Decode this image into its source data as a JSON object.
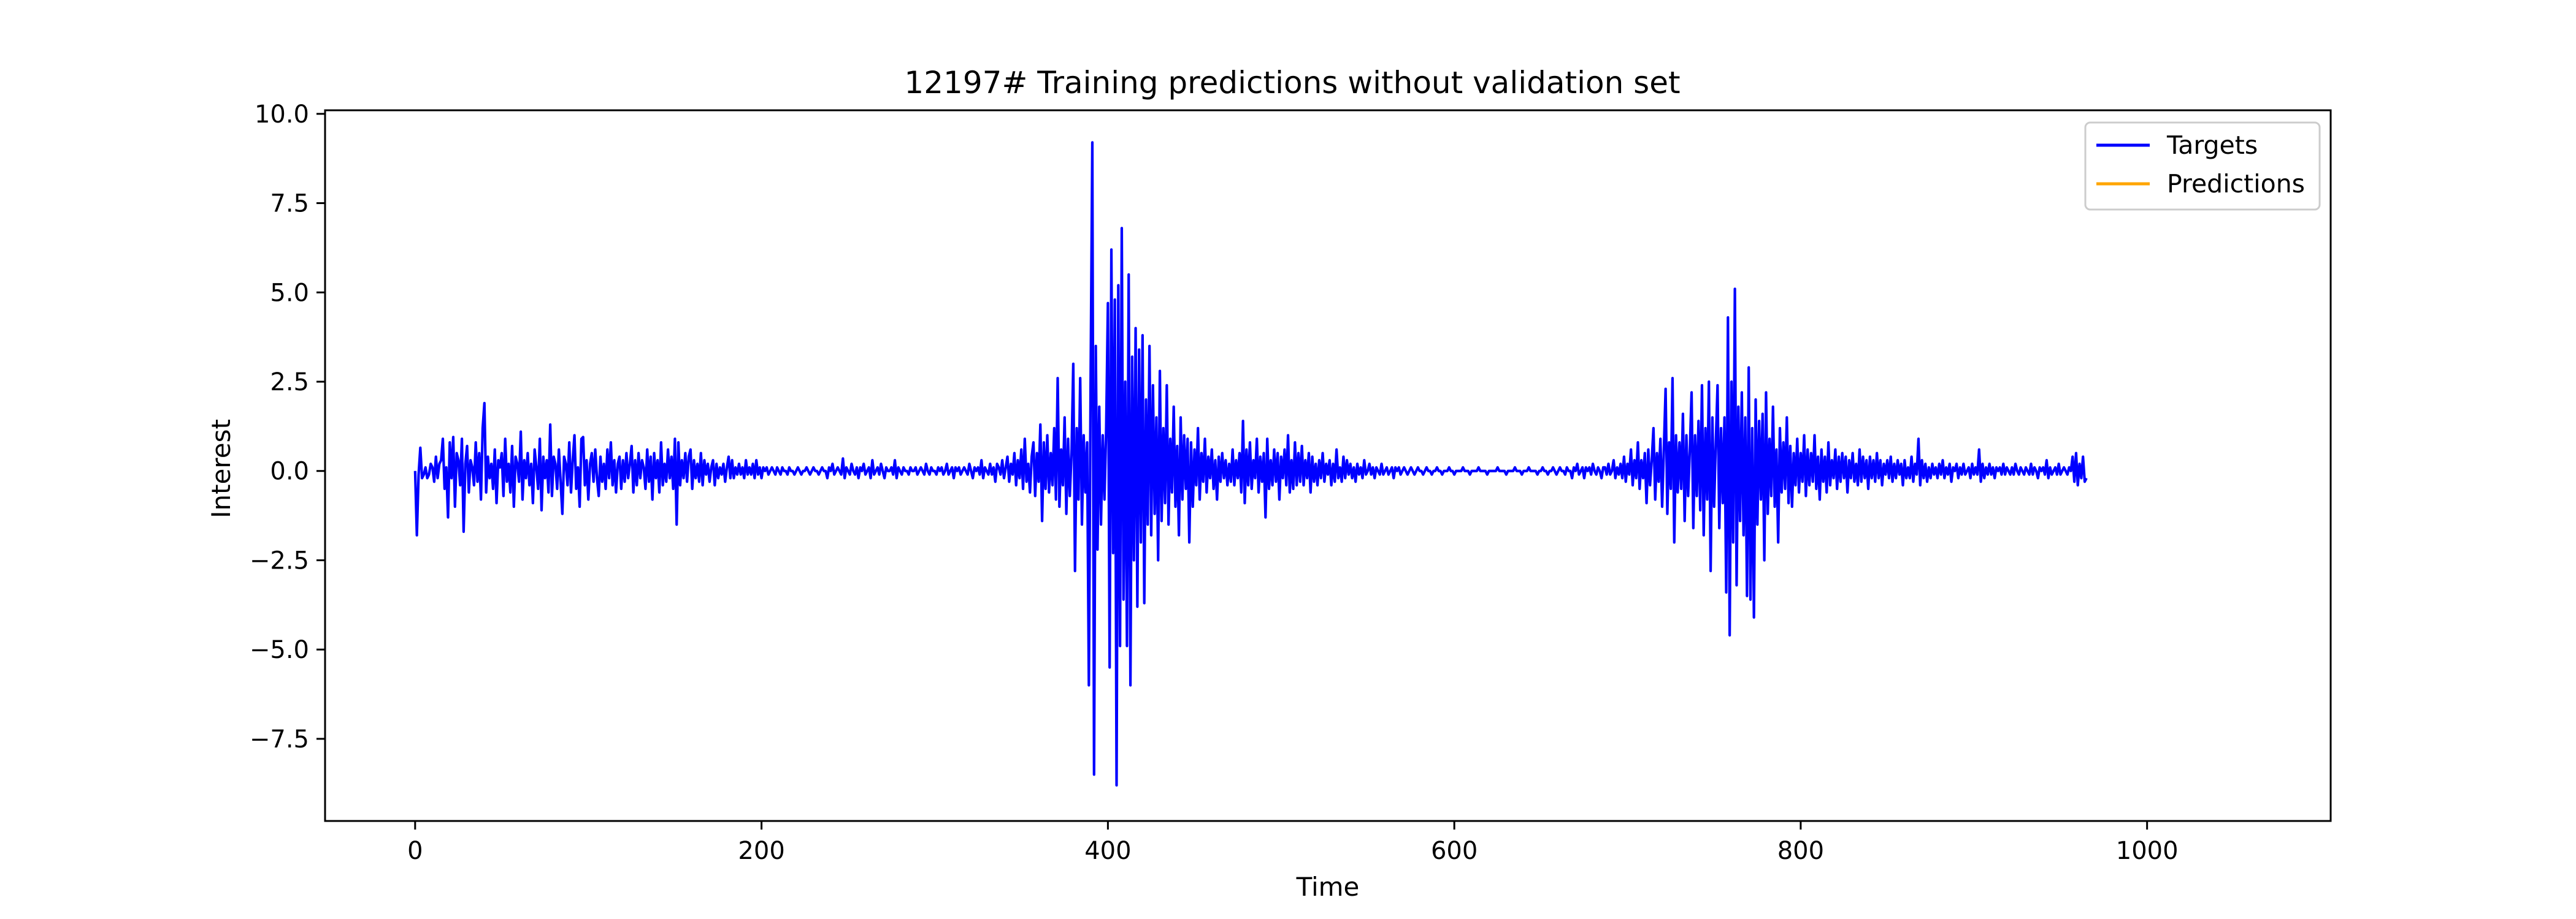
{
  "chart_data": {
    "type": "line",
    "title": "12197# Training predictions without validation set",
    "xlabel": "Time",
    "ylabel": "Interest",
    "xlim": [
      -52,
      1106
    ],
    "ylim": [
      -9.8,
      10.1
    ],
    "x_ticks": [
      0,
      200,
      400,
      600,
      800,
      1000
    ],
    "x_tick_labels": [
      "0",
      "200",
      "400",
      "600",
      "800",
      "1000"
    ],
    "y_ticks": [
      10.0,
      7.5,
      5.0,
      2.5,
      0.0,
      -2.5,
      -5.0,
      -7.5
    ],
    "y_tick_labels": [
      "10.0",
      "7.5",
      "5.0",
      "2.5",
      "0.0",
      "−2.5",
      "−5.0",
      "−7.5"
    ],
    "grid": false,
    "legend_position": "top-right",
    "legend": [
      {
        "name": "Targets",
        "color": "#0000ff"
      },
      {
        "name": "Predictions",
        "color": "#ffa500"
      }
    ],
    "series": [
      {
        "name": "Targets",
        "color": "#0000ff",
        "x_start": 0,
        "x_step": 1,
        "values": [
          0.0,
          -1.8,
          -0.1,
          0.65,
          -0.2,
          -0.1,
          0.1,
          -0.2,
          -0.1,
          0.2,
          0.1,
          -0.3,
          0.4,
          -0.2,
          0.2,
          0.3,
          0.9,
          -0.5,
          0.1,
          -1.3,
          0.8,
          -0.2,
          0.95,
          -1.0,
          0.5,
          0.3,
          -0.4,
          0.9,
          -1.7,
          0.2,
          0.7,
          -0.6,
          0.3,
          0.1,
          -0.4,
          0.8,
          -0.3,
          0.5,
          -0.8,
          1.2,
          1.9,
          -0.6,
          0.4,
          -0.2,
          0.2,
          -0.5,
          0.6,
          -0.9,
          0.3,
          0.1,
          0.5,
          -0.7,
          0.9,
          -0.3,
          0.2,
          -0.6,
          0.7,
          -1.0,
          0.4,
          0.2,
          -0.3,
          1.1,
          -0.8,
          0.3,
          -0.2,
          0.5,
          -0.4,
          0.2,
          -0.9,
          0.6,
          0.1,
          -0.5,
          0.9,
          -1.1,
          0.4,
          -0.2,
          0.3,
          -0.6,
          1.3,
          -0.7,
          0.4,
          0.2,
          -0.5,
          0.6,
          -0.3,
          -1.2,
          0.4,
          0.2,
          -0.4,
          0.8,
          -0.6,
          0.3,
          1.0,
          -0.5,
          0.1,
          -1.0,
          0.9,
          0.95,
          -0.4,
          0.3,
          -0.8,
          0.2,
          0.5,
          -0.3,
          0.6,
          -0.2,
          -0.7,
          0.4,
          -0.3,
          0.2,
          -0.5,
          0.6,
          -0.2,
          0.8,
          -0.4,
          0.3,
          -0.6,
          0.2,
          0.4,
          -0.5,
          0.3,
          -0.3,
          0.5,
          -0.2,
          0.2,
          0.7,
          -0.6,
          0.3,
          -0.4,
          0.5,
          -0.2,
          0.3,
          0.1,
          -0.5,
          0.6,
          -0.3,
          0.4,
          -0.8,
          0.5,
          -0.2,
          0.3,
          -0.6,
          0.8,
          -0.4,
          0.2,
          -0.3,
          0.6,
          -0.2,
          0.4,
          -0.5,
          0.9,
          -1.5,
          0.8,
          -0.4,
          0.3,
          -0.2,
          0.5,
          -0.3,
          0.4,
          0.6,
          -0.5,
          0.3,
          -0.2,
          0.2,
          -0.3,
          0.5,
          -0.4,
          0.3,
          -0.1,
          0.2,
          -0.3,
          0.1,
          0.3,
          -0.4,
          0.2,
          -0.2,
          0.1,
          -0.1,
          0.2,
          -0.3,
          0.1,
          0.4,
          -0.2,
          0.3,
          -0.2,
          0.1,
          -0.1,
          0.2,
          -0.1,
          0.1,
          -0.2,
          0.3,
          -0.1,
          0.1,
          -0.1,
          0.2,
          -0.2,
          0.3,
          -0.1,
          0.1,
          -0.2,
          0.1,
          0.0,
          0.1,
          -0.1,
          0.0,
          0.1,
          0.0,
          -0.1,
          0.1,
          0.0,
          -0.1,
          0.1,
          0.0,
          0.0,
          -0.1,
          0.1,
          0.0,
          0.0,
          -0.1,
          0.0,
          0.1,
          0.0,
          -0.1,
          0.0,
          0.0,
          0.1,
          0.0,
          -0.1,
          0.0,
          0.1,
          0.0,
          0.0,
          -0.1,
          0.0,
          0.1,
          0.0,
          0.0,
          -0.2,
          0.1,
          0.0,
          0.2,
          -0.1,
          0.0,
          0.1,
          0.0,
          -0.1,
          0.35,
          -0.2,
          0.1,
          0.0,
          -0.1,
          0.2,
          0.0,
          -0.1,
          0.1,
          -0.2,
          0.1,
          0.0,
          0.2,
          -0.1,
          0.0,
          0.1,
          -0.2,
          0.3,
          -0.1,
          0.0,
          0.1,
          -0.1,
          0.2,
          0.0,
          -0.2,
          0.1,
          0.0,
          0.0,
          0.1,
          -0.1,
          0.3,
          -0.2,
          0.1,
          0.0,
          -0.1,
          0.1,
          0.0,
          0.0,
          -0.1,
          0.1,
          0.0,
          0.0,
          0.1,
          -0.1,
          0.0,
          0.1,
          0.0,
          -0.1,
          0.2,
          0.0,
          -0.1,
          0.1,
          0.0,
          0.0,
          -0.1,
          0.1,
          0.0,
          0.1,
          -0.1,
          0.0,
          0.2,
          -0.1,
          0.0,
          0.1,
          -0.2,
          0.1,
          0.0,
          0.1,
          -0.1,
          0.0,
          0.1,
          0.0,
          -0.1,
          0.2,
          0.0,
          -0.2,
          0.1,
          0.0,
          0.1,
          -0.1,
          0.3,
          -0.2,
          0.1,
          0.0,
          -0.1,
          0.2,
          -0.1,
          0.1,
          -0.3,
          0.2,
          0.1,
          -0.1,
          0.3,
          -0.2,
          0.1,
          0.4,
          -0.3,
          0.2,
          -0.1,
          0.5,
          -0.4,
          0.3,
          -0.2,
          0.6,
          -0.5,
          0.9,
          -0.3,
          0.2,
          -0.6,
          0.4,
          0.8,
          -0.7,
          0.5,
          -0.3,
          1.3,
          -1.4,
          0.8,
          -0.5,
          1.0,
          -0.6,
          0.5,
          -0.4,
          1.2,
          -0.8,
          2.6,
          -1.0,
          0.6,
          -0.4,
          1.5,
          -1.2,
          0.9,
          -0.7,
          0.5,
          3.0,
          -2.8,
          1.2,
          -0.8,
          2.6,
          -1.5,
          1.0,
          -0.6,
          0.8,
          -6.0,
          2.4,
          9.2,
          -8.5,
          3.5,
          -2.2,
          1.8,
          -1.5,
          1.0,
          -0.8,
          1.2,
          4.7,
          -5.5,
          6.2,
          -2.3,
          4.8,
          -8.8,
          5.2,
          -4.9,
          6.8,
          -3.6,
          2.5,
          -4.9,
          5.5,
          -6.0,
          3.2,
          -2.5,
          4.0,
          -3.8,
          3.4,
          -2.0,
          3.8,
          -3.7,
          2.0,
          -1.5,
          3.5,
          -1.8,
          2.4,
          -1.2,
          1.5,
          -2.5,
          2.8,
          -1.4,
          1.2,
          -0.9,
          2.4,
          -1.5,
          0.9,
          -0.6,
          1.8,
          -1.0,
          0.7,
          -1.8,
          1.5,
          -0.8,
          1.0,
          -0.5,
          0.9,
          -2.0,
          0.8,
          -1.0,
          0.6,
          -0.4,
          1.2,
          -0.8,
          0.5,
          -0.3,
          0.9,
          -0.6,
          0.4,
          -0.2,
          0.6,
          -0.5,
          0.3,
          -0.8,
          0.4,
          -0.3,
          0.5,
          -0.2,
          0.3,
          -0.4,
          0.2,
          -0.3,
          0.6,
          -0.4,
          0.3,
          -0.2,
          0.5,
          -0.6,
          1.4,
          -0.9,
          0.6,
          -0.4,
          0.8,
          -0.5,
          0.3,
          -0.2,
          0.9,
          -0.6,
          0.4,
          -0.3,
          0.5,
          -1.3,
          0.9,
          -0.5,
          0.3,
          -0.4,
          0.6,
          -0.3,
          0.5,
          -0.8,
          0.4,
          -0.2,
          0.6,
          -0.4,
          1.0,
          -0.6,
          0.3,
          -0.5,
          0.8,
          -0.4,
          0.5,
          -0.3,
          0.7,
          -0.4,
          0.3,
          -0.2,
          0.5,
          -0.6,
          0.4,
          -0.3,
          0.2,
          -0.4,
          0.3,
          -0.2,
          0.5,
          -0.3,
          0.2,
          -0.1,
          0.3,
          -0.4,
          0.2,
          -0.3,
          0.6,
          -0.2,
          0.1,
          -0.3,
          0.4,
          -0.2,
          0.3,
          -0.1,
          0.2,
          -0.2,
          0.1,
          -0.3,
          0.2,
          -0.1,
          0.1,
          -0.2,
          0.3,
          -0.1,
          0.0,
          0.2,
          -0.1,
          0.1,
          -0.2,
          0.1,
          0.0,
          -0.1,
          0.2,
          -0.1,
          0.0,
          0.1,
          -0.1,
          0.0,
          0.1,
          -0.2,
          0.1,
          0.0,
          0.1,
          -0.1,
          0.0,
          0.1,
          0.0,
          -0.1,
          0.0,
          0.1,
          0.0,
          -0.1,
          0.0,
          0.1,
          0.0,
          0.0,
          -0.1,
          0.0,
          0.1,
          0.0,
          0.0,
          -0.1,
          0.0,
          0.0,
          0.1,
          0.0,
          0.0,
          -0.1,
          0.0,
          0.0,
          0.0,
          0.1,
          0.0,
          0.0,
          -0.1,
          0.0,
          0.0,
          0.0,
          0.0,
          0.1,
          0.0,
          0.0,
          0.0,
          -0.1,
          0.0,
          0.0,
          0.0,
          0.0,
          0.1,
          0.0,
          0.0,
          0.0,
          0.0,
          -0.1,
          0.0,
          0.0,
          0.0,
          0.0,
          0.0,
          0.1,
          0.0,
          0.0,
          0.0,
          0.0,
          -0.1,
          0.0,
          0.0,
          0.0,
          0.0,
          0.1,
          0.0,
          0.0,
          0.0,
          -0.1,
          0.0,
          0.0,
          0.0,
          0.1,
          0.0,
          0.0,
          0.0,
          0.0,
          -0.1,
          0.0,
          0.0,
          0.1,
          0.0,
          0.0,
          -0.1,
          0.0,
          0.0,
          0.1,
          0.0,
          -0.1,
          0.0,
          0.1,
          0.0,
          0.0,
          -0.1,
          0.1,
          0.0,
          0.0,
          -0.2,
          0.1,
          0.0,
          0.2,
          -0.1,
          0.0,
          0.1,
          -0.2,
          0.1,
          0.0,
          0.1,
          -0.1,
          0.2,
          0.0,
          -0.1,
          0.1,
          0.0,
          -0.2,
          0.1,
          0.1,
          -0.1,
          0.2,
          -0.1,
          0.0,
          0.3,
          -0.2,
          0.1,
          -0.1,
          0.2,
          -0.2,
          0.4,
          -0.3,
          0.2,
          -0.1,
          0.6,
          -0.4,
          0.3,
          -0.2,
          0.8,
          -0.5,
          0.3,
          -0.2,
          0.5,
          -0.9,
          0.6,
          -0.4,
          0.3,
          1.2,
          -0.8,
          0.5,
          -0.3,
          0.9,
          -1.0,
          0.6,
          2.3,
          -1.2,
          0.8,
          -0.5,
          2.6,
          -2.0,
          1.0,
          -0.6,
          0.8,
          -0.5,
          1.6,
          -1.4,
          1.0,
          -0.7,
          0.6,
          2.2,
          -1.6,
          1.0,
          -0.7,
          1.4,
          -1.1,
          2.4,
          -1.8,
          1.2,
          -0.8,
          2.5,
          -2.8,
          1.5,
          -1.0,
          0.8,
          2.4,
          -1.6,
          1.2,
          -0.9,
          1.5,
          -3.4,
          4.3,
          -4.6,
          2.5,
          -2.0,
          5.1,
          -3.2,
          1.8,
          -1.4,
          2.2,
          -1.8,
          1.5,
          -3.5,
          2.9,
          -3.6,
          1.2,
          -4.1,
          2.0,
          -1.5,
          1.4,
          -0.8,
          1.6,
          -2.5,
          2.2,
          -1.2,
          0.9,
          -0.7,
          1.8,
          -1.0,
          0.6,
          -2.0,
          1.2,
          -0.6,
          0.8,
          -0.5,
          1.5,
          -0.9,
          0.7,
          -1.0,
          0.5,
          -0.4,
          0.9,
          -0.6,
          0.5,
          -0.3,
          1.0,
          -0.7,
          0.6,
          -0.4,
          0.5,
          -0.3,
          1.0,
          -0.5,
          0.4,
          -0.8,
          0.6,
          -0.3,
          0.4,
          -0.6,
          0.8,
          -0.4,
          0.3,
          -0.2,
          0.6,
          -0.5,
          0.4,
          -0.3,
          0.5,
          -0.2,
          0.4,
          -0.6,
          0.3,
          -0.2,
          0.5,
          -0.3,
          0.2,
          -0.4,
          0.6,
          -0.3,
          0.4,
          -0.2,
          0.3,
          -0.5,
          0.4,
          -0.2,
          0.3,
          -0.3,
          0.5,
          -0.2,
          0.3,
          -0.4,
          0.2,
          -0.1,
          0.3,
          -0.2,
          0.4,
          -0.3,
          0.2,
          -0.2,
          0.3,
          -0.1,
          0.2,
          -0.4,
          0.3,
          -0.2,
          0.1,
          -0.2,
          0.4,
          -0.3,
          0.2,
          -0.1,
          0.9,
          -0.4,
          0.3,
          -0.2,
          0.2,
          -0.3,
          0.1,
          -0.2,
          0.2,
          -0.1,
          0.1,
          -0.2,
          0.2,
          -0.1,
          0.3,
          -0.2,
          0.1,
          -0.1,
          0.2,
          -0.3,
          0.1,
          0.0,
          0.2,
          -0.2,
          0.1,
          -0.1,
          0.2,
          -0.1,
          0.0,
          0.1,
          -0.2,
          0.2,
          -0.1,
          0.1,
          -0.1,
          0.6,
          -0.3,
          0.2,
          -0.2,
          0.1,
          -0.1,
          0.2,
          -0.1,
          0.1,
          -0.2,
          0.1,
          0.0,
          0.1,
          -0.1,
          0.2,
          -0.1,
          0.1,
          0.0,
          -0.1,
          0.1,
          -0.1,
          0.2,
          0.0,
          -0.1,
          0.1,
          0.0,
          -0.1,
          0.1,
          0.0,
          -0.1,
          0.2,
          -0.1,
          0.1,
          0.0,
          -0.2,
          0.1,
          0.0,
          0.1,
          -0.1,
          0.3,
          -0.2,
          0.1,
          -0.1,
          0.0,
          0.1,
          -0.1,
          0.2,
          -0.1,
          0.0,
          0.1,
          0.0,
          -0.1,
          0.1,
          0.0,
          0.4,
          -0.3,
          0.5,
          -0.4,
          0.2,
          -0.2,
          0.4,
          -0.3,
          -0.2
        ]
      },
      {
        "name": "Predictions",
        "color": "#ffa500",
        "values": []
      }
    ]
  }
}
